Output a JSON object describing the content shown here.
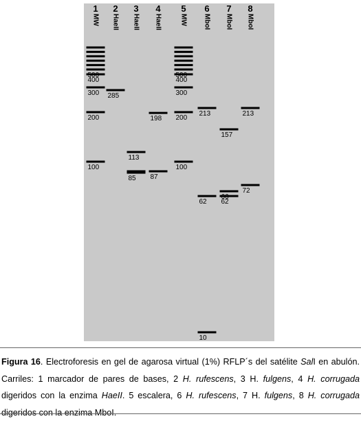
{
  "gel": {
    "lanes": [
      {
        "number": "1",
        "name": "MW"
      },
      {
        "number": "2",
        "name": "HaeII"
      },
      {
        "number": "3",
        "name": "HaeII"
      },
      {
        "number": "4",
        "name": "HaeII"
      },
      {
        "number": "5",
        "name": "MW"
      },
      {
        "number": "6",
        "name": "MboI"
      },
      {
        "number": "7",
        "name": "MboI"
      },
      {
        "number": "8",
        "name": "MboI"
      }
    ],
    "bands": [
      {
        "lane": 1,
        "size": 1000,
        "label": ""
      },
      {
        "lane": 1,
        "size": 900,
        "label": ""
      },
      {
        "lane": 1,
        "size": 800,
        "label": ""
      },
      {
        "lane": 1,
        "size": 700,
        "label": ""
      },
      {
        "lane": 1,
        "size": 600,
        "label": ""
      },
      {
        "lane": 1,
        "size": 500,
        "label": "500"
      },
      {
        "lane": 1,
        "size": 400,
        "label": "400"
      },
      {
        "lane": 1,
        "size": 300,
        "label": "300"
      },
      {
        "lane": 1,
        "size": 200,
        "label": "200"
      },
      {
        "lane": 1,
        "size": 100,
        "label": "100"
      },
      {
        "lane": 2,
        "size": 285,
        "label": "285"
      },
      {
        "lane": 3,
        "size": 113,
        "label": "113"
      },
      {
        "lane": 3,
        "size": 87,
        "label": ""
      },
      {
        "lane": 3,
        "size": 85,
        "label": "85"
      },
      {
        "lane": 4,
        "size": 198,
        "label": "198"
      },
      {
        "lane": 4,
        "size": 87,
        "label": "87"
      },
      {
        "lane": 5,
        "size": 1000,
        "label": ""
      },
      {
        "lane": 5,
        "size": 900,
        "label": ""
      },
      {
        "lane": 5,
        "size": 800,
        "label": ""
      },
      {
        "lane": 5,
        "size": 700,
        "label": ""
      },
      {
        "lane": 5,
        "size": 600,
        "label": ""
      },
      {
        "lane": 5,
        "size": 500,
        "label": "500"
      },
      {
        "lane": 5,
        "size": 400,
        "label": "400"
      },
      {
        "lane": 5,
        "size": 300,
        "label": "300"
      },
      {
        "lane": 5,
        "size": 200,
        "label": "200"
      },
      {
        "lane": 5,
        "size": 100,
        "label": "100"
      },
      {
        "lane": 6,
        "size": 213,
        "label": "213"
      },
      {
        "lane": 6,
        "size": 62,
        "label": "62"
      },
      {
        "lane": 6,
        "size": 10,
        "label": "10"
      },
      {
        "lane": 7,
        "size": 157,
        "label": "157"
      },
      {
        "lane": 7,
        "size": 66,
        "label": "66"
      },
      {
        "lane": 7,
        "size": 62,
        "label": "62"
      },
      {
        "lane": 8,
        "size": 213,
        "label": "213"
      },
      {
        "lane": 8,
        "size": 72,
        "label": "72"
      }
    ]
  },
  "caption": {
    "figure_label": "Figura 16",
    "t1": ". Electroforesis en gel de agarosa virtual (1%) RFLP´s del satélite ",
    "sali": "Sal",
    "t2": "I en abulón. Carriles: 1 marcador de pares de bases, 2 ",
    "sp1": "H. rufescens",
    "t3": ", 3 H. ",
    "sp2": "fulgens",
    "t4": ", 4 ",
    "sp3": "H. corrugada",
    "t5": " digeridos con la enzima ",
    "enz1": "HaeII",
    "t6": ". 5 escalera, 6 ",
    "sp4": "H. rufescens",
    "t7": ", 7 H. ",
    "sp5": "fulgens",
    "t8": ", 8 ",
    "sp6": "H. corrugada",
    "t9": " digeridos con la enzima MboI."
  }
}
